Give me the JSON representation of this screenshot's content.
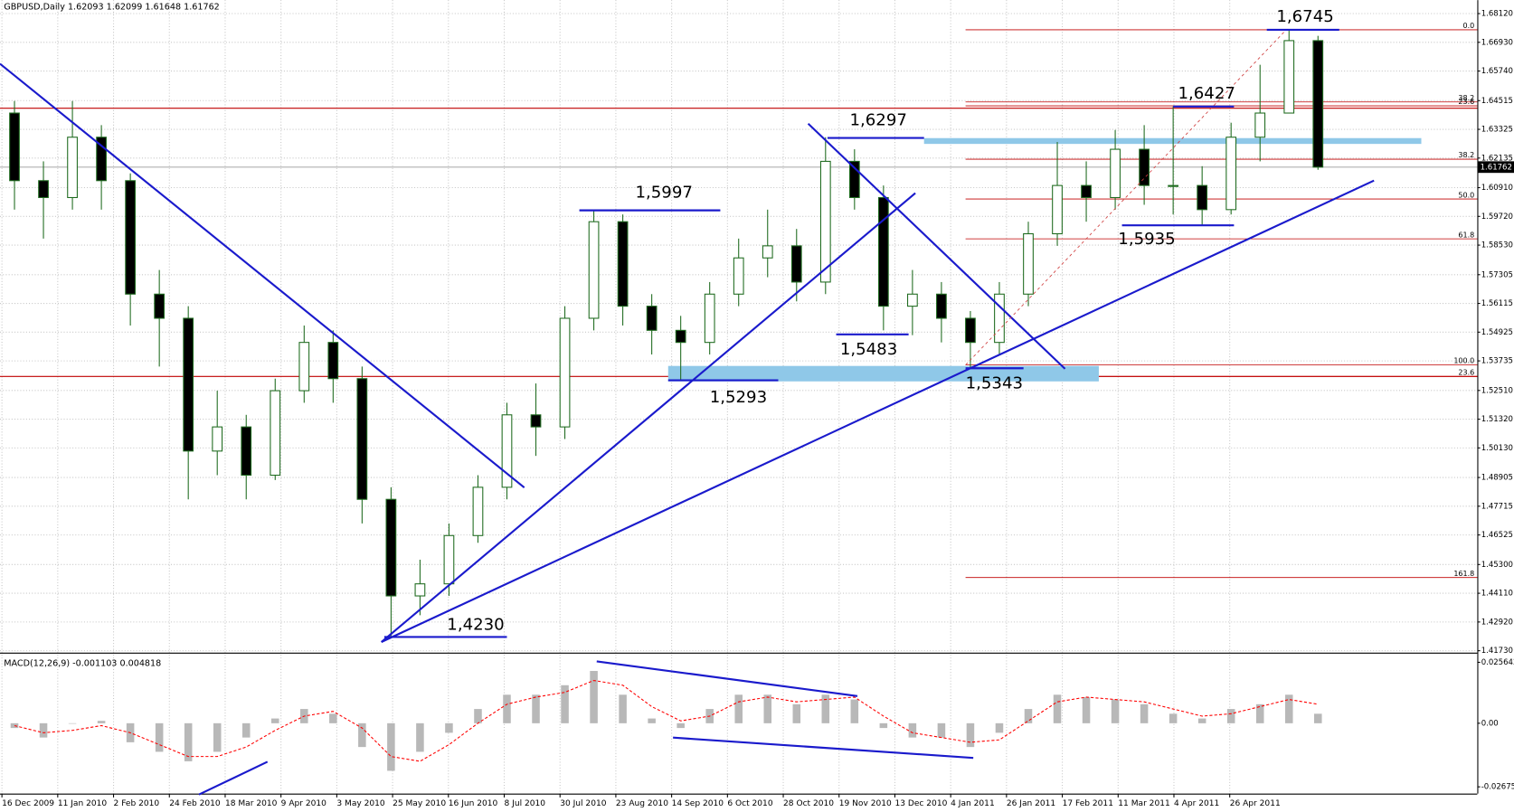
{
  "chart_data": [
    {
      "type": "candlestick",
      "title": "GBPUSD,Daily 1.62093 1.62099 1.61648 1.61762",
      "open": [
        1.64,
        1.612,
        1.605,
        1.63,
        1.612,
        1.565,
        1.555,
        1.5,
        1.51,
        1.49,
        1.525,
        1.545,
        1.53,
        1.48,
        1.44,
        1.445,
        1.465,
        1.485,
        1.515,
        1.51,
        1.555,
        1.595,
        1.56,
        1.55,
        1.545,
        1.565,
        1.58,
        1.585,
        1.57,
        1.62,
        1.605,
        1.56,
        1.565,
        1.555,
        1.545,
        1.565,
        1.59,
        1.61,
        1.605,
        1.625,
        1.61,
        1.61,
        1.6,
        1.63,
        1.64,
        1.67
      ],
      "high": [
        1.645,
        1.62,
        1.645,
        1.635,
        1.615,
        1.575,
        1.56,
        1.525,
        1.515,
        1.53,
        1.552,
        1.55,
        1.535,
        1.485,
        1.455,
        1.47,
        1.49,
        1.52,
        1.528,
        1.56,
        1.6,
        1.598,
        1.565,
        1.556,
        1.57,
        1.588,
        1.6,
        1.592,
        1.63,
        1.625,
        1.61,
        1.575,
        1.57,
        1.558,
        1.57,
        1.595,
        1.628,
        1.62,
        1.633,
        1.635,
        1.6427,
        1.618,
        1.636,
        1.66,
        1.6745,
        1.672
      ],
      "low": [
        1.6,
        1.588,
        1.6,
        1.6,
        1.552,
        1.535,
        1.48,
        1.49,
        1.48,
        1.488,
        1.52,
        1.52,
        1.47,
        1.423,
        1.432,
        1.44,
        1.462,
        1.48,
        1.498,
        1.505,
        1.55,
        1.552,
        1.54,
        1.529,
        1.54,
        1.56,
        1.572,
        1.562,
        1.565,
        1.6,
        1.55,
        1.548,
        1.545,
        1.534,
        1.54,
        1.56,
        1.585,
        1.595,
        1.6,
        1.602,
        1.598,
        1.5935,
        1.598,
        1.62,
        1.64,
        1.6165
      ],
      "close": [
        1.612,
        1.605,
        1.63,
        1.612,
        1.565,
        1.555,
        1.5,
        1.51,
        1.49,
        1.525,
        1.545,
        1.53,
        1.48,
        1.44,
        1.445,
        1.465,
        1.485,
        1.515,
        1.51,
        1.555,
        1.595,
        1.56,
        1.55,
        1.545,
        1.565,
        1.58,
        1.585,
        1.57,
        1.62,
        1.605,
        1.56,
        1.565,
        1.555,
        1.545,
        1.565,
        1.59,
        1.61,
        1.605,
        1.625,
        1.61,
        1.61,
        1.6,
        1.63,
        1.64,
        1.67,
        1.6176
      ],
      "up_color": "#ffffff",
      "down_color": "#000000",
      "wick_color": "#1f6b1f",
      "ylim": [
        1.4173,
        1.6812
      ],
      "yticks": [
        {
          "value": 1.6812,
          "label": "1.68120"
        },
        {
          "value": 1.6693,
          "label": "1.66930"
        },
        {
          "value": 1.6574,
          "label": "1.65740"
        },
        1.64515,
        1.63325,
        1.62135,
        {
          "value": 1.6091,
          "label": "1.60910"
        },
        {
          "value": 1.5972,
          "label": "1.59720"
        },
        {
          "value": 1.5853,
          "label": "1.58530"
        },
        1.57305,
        1.56115,
        1.54925,
        1.53735,
        {
          "value": 1.5251,
          "label": "1.52510"
        },
        {
          "value": 1.5132,
          "label": "1.51320"
        },
        {
          "value": 1.5013,
          "label": "1.50130"
        },
        1.48905,
        1.47715,
        1.46525,
        {
          "value": 1.453,
          "label": "1.45300"
        },
        {
          "value": 1.4411,
          "label": "1.44110"
        },
        {
          "value": 1.4292,
          "label": "1.42920"
        },
        {
          "value": 1.4173,
          "label": "1.41730"
        }
      ],
      "grid": true,
      "x_labels": [
        "16 Dec 2009",
        "11 Jan 2010",
        "2 Feb 2010",
        "24 Feb 2010",
        "18 Mar 2010",
        "9 Apr 2010",
        "3 May 2010",
        "25 May 2010",
        "16 Jun 2010",
        "8 Jul 2010",
        "30 Jul 2010",
        "23 Aug 2010",
        "14 Sep 2010",
        "6 Oct 2010",
        "28 Oct 2010",
        "19 Nov 2010",
        "13 Dec 2010",
        "4 Jan 2011",
        "26 Jan 2011",
        "17 Feb 2011",
        "11 Mar 2011",
        "4 Apr 2011",
        "26 Apr 2011"
      ],
      "current_price": {
        "value": 1.61762,
        "label": "1.61762"
      },
      "annotation_color": "#1a1acc",
      "annotations": [
        {
          "value": 1.6745,
          "label": "1,6745"
        },
        {
          "value": 1.6427,
          "label": "1,6427"
        },
        {
          "value": 1.6297,
          "label": "1,6297"
        },
        {
          "value": 1.5997,
          "label": "1,5997"
        },
        {
          "value": 1.5483,
          "label": "1,5483"
        },
        {
          "value": 1.5293,
          "label": "1,5293"
        },
        {
          "value": 1.5343,
          "label": "1,5343"
        },
        {
          "value": 1.5935,
          "label": "1,5935"
        },
        {
          "value": 1.423,
          "label": "1,4230"
        }
      ],
      "level_color": "#c00000",
      "level_lines": [
        1.642,
        1.5309
      ],
      "fib_levels": [
        {
          "value": 1.6745,
          "label": "0.0"
        },
        {
          "value": 1.6446,
          "label": "38.2"
        },
        {
          "value": 1.643,
          "label": "23.6"
        },
        {
          "value": 1.6209,
          "label": "38.2"
        },
        {
          "value": 1.6044,
          "label": "50.0"
        },
        {
          "value": 1.5879,
          "label": "61.8"
        },
        {
          "value": 1.5357,
          "label": "100.0"
        },
        {
          "value": 1.5309,
          "label": "23.6"
        },
        {
          "value": 1.4476,
          "label": "161.8"
        }
      ]
    },
    {
      "type": "macd",
      "title": "MACD(12,26,9) -0.001103 0.004818",
      "histogram": [
        -0.002,
        -0.006,
        0.0,
        0.001,
        -0.008,
        -0.012,
        -0.016,
        -0.012,
        -0.006,
        0.002,
        0.006,
        0.004,
        -0.01,
        -0.02,
        -0.012,
        -0.004,
        0.006,
        0.012,
        0.012,
        0.016,
        0.022,
        0.012,
        0.002,
        -0.002,
        0.006,
        0.012,
        0.012,
        0.008,
        0.012,
        0.01,
        -0.002,
        -0.006,
        -0.006,
        -0.01,
        -0.004,
        0.006,
        0.012,
        0.011,
        0.01,
        0.008,
        0.004,
        0.002,
        0.006,
        0.008,
        0.012,
        0.004
      ],
      "signal": [
        -0.001,
        -0.004,
        -0.003,
        -0.001,
        -0.004,
        -0.009,
        -0.014,
        -0.014,
        -0.01,
        -0.003,
        0.003,
        0.005,
        -0.002,
        -0.014,
        -0.016,
        -0.009,
        0.0,
        0.008,
        0.011,
        0.013,
        0.018,
        0.016,
        0.007,
        0.001,
        0.003,
        0.009,
        0.011,
        0.009,
        0.01,
        0.011,
        0.003,
        -0.004,
        -0.006,
        -0.008,
        -0.007,
        0.001,
        0.009,
        0.011,
        0.01,
        0.009,
        0.006,
        0.003,
        0.004,
        0.007,
        0.01,
        0.008
      ],
      "histogram_color": "#b8b8b8",
      "signal_color": "#ff0000",
      "ylim": [
        -0.02675,
        0.025642
      ],
      "yticks": [
        0.025642,
        {
          "value": 0,
          "label": "0.00"
        },
        -0.02675
      ]
    }
  ]
}
